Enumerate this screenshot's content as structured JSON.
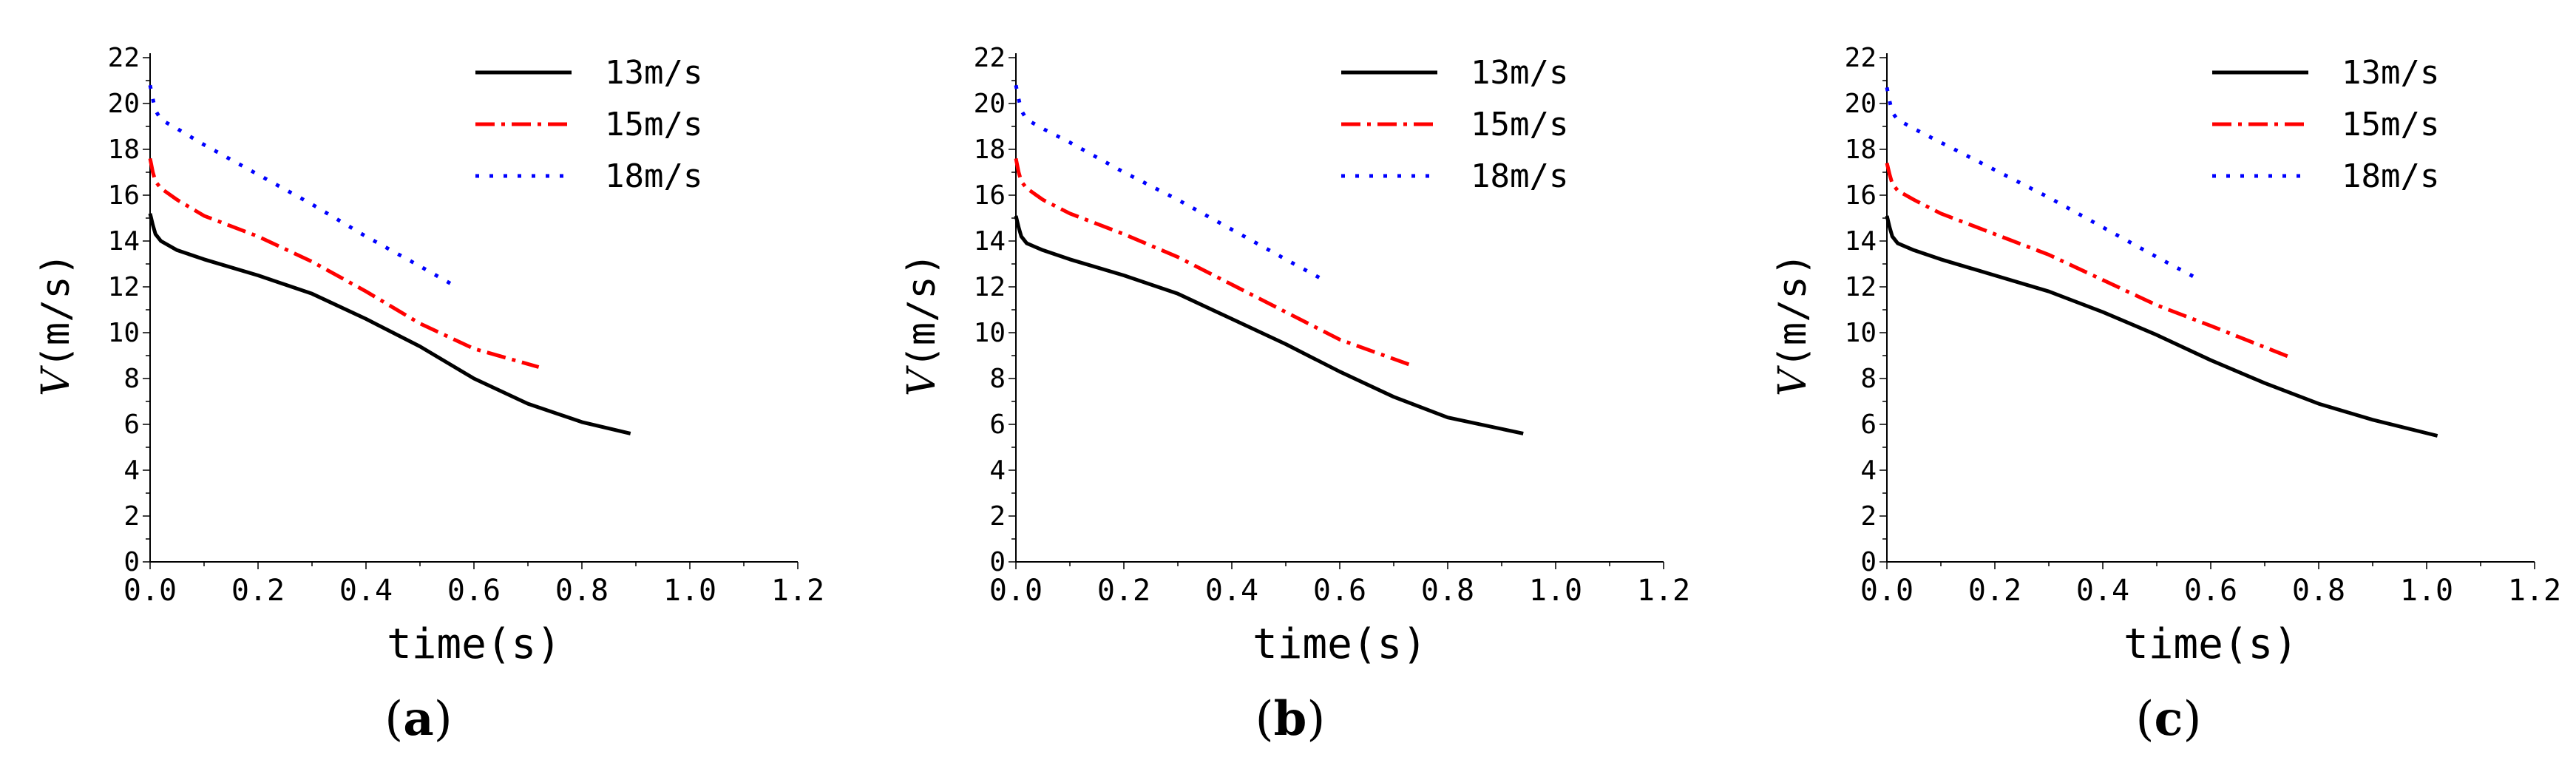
{
  "chart_data": [
    {
      "type": "line",
      "panel_label_open": "(",
      "panel_label": "a",
      "panel_label_close": ")",
      "xlabel": "time(s)",
      "ylabel_var": "V",
      "ylabel_unit": "(m/s)",
      "xlim": [
        0.0,
        1.2
      ],
      "ylim": [
        0,
        22
      ],
      "xticks": [
        0.0,
        0.2,
        0.4,
        0.6,
        0.8,
        1.0,
        1.2
      ],
      "xtick_labels": [
        "0.0",
        "0.2",
        "0.4",
        "0.6",
        "0.8",
        "1.0",
        "1.2"
      ],
      "yticks": [
        0,
        2,
        4,
        6,
        8,
        10,
        12,
        14,
        16,
        18,
        20,
        22
      ],
      "ytick_labels": [
        "0",
        "2",
        "4",
        "6",
        "8",
        "10",
        "12",
        "14",
        "16",
        "18",
        "20",
        "22"
      ],
      "legend_position": "top-right",
      "series": [
        {
          "name": "13m/s",
          "color": "#000000",
          "dash": "solid",
          "x": [
            0.0,
            0.005,
            0.01,
            0.02,
            0.05,
            0.1,
            0.2,
            0.3,
            0.4,
            0.5,
            0.6,
            0.7,
            0.8,
            0.89
          ],
          "y": [
            15.2,
            14.7,
            14.3,
            14.0,
            13.6,
            13.2,
            12.5,
            11.7,
            10.6,
            9.4,
            8.0,
            6.9,
            6.1,
            5.6
          ]
        },
        {
          "name": "15m/s",
          "color": "#ff0000",
          "dash": "dashdot",
          "x": [
            0.0,
            0.005,
            0.01,
            0.02,
            0.05,
            0.1,
            0.2,
            0.3,
            0.4,
            0.5,
            0.6,
            0.72
          ],
          "y": [
            17.6,
            17.0,
            16.6,
            16.3,
            15.8,
            15.1,
            14.2,
            13.1,
            11.8,
            10.4,
            9.3,
            8.5
          ]
        },
        {
          "name": "18m/s",
          "color": "#0000ff",
          "dash": "dotted",
          "x": [
            0.0,
            0.005,
            0.01,
            0.02,
            0.05,
            0.1,
            0.2,
            0.3,
            0.4,
            0.5,
            0.56
          ],
          "y": [
            20.8,
            20.2,
            19.7,
            19.3,
            18.9,
            18.2,
            16.9,
            15.6,
            14.2,
            12.9,
            12.1
          ]
        }
      ]
    },
    {
      "type": "line",
      "panel_label_open": "(",
      "panel_label": "b",
      "panel_label_close": ")",
      "xlabel": "time(s)",
      "ylabel_var": "V",
      "ylabel_unit": "(m/s)",
      "xlim": [
        0.0,
        1.2
      ],
      "ylim": [
        0,
        22
      ],
      "xticks": [
        0.0,
        0.2,
        0.4,
        0.6,
        0.8,
        1.0,
        1.2
      ],
      "xtick_labels": [
        "0.0",
        "0.2",
        "0.4",
        "0.6",
        "0.8",
        "1.0",
        "1.2"
      ],
      "yticks": [
        0,
        2,
        4,
        6,
        8,
        10,
        12,
        14,
        16,
        18,
        20,
        22
      ],
      "ytick_labels": [
        "0",
        "2",
        "4",
        "6",
        "8",
        "10",
        "12",
        "14",
        "16",
        "18",
        "20",
        "22"
      ],
      "legend_position": "top-right",
      "series": [
        {
          "name": "13m/s",
          "color": "#000000",
          "dash": "solid",
          "x": [
            0.0,
            0.005,
            0.01,
            0.02,
            0.05,
            0.1,
            0.2,
            0.3,
            0.4,
            0.5,
            0.6,
            0.7,
            0.8,
            0.94
          ],
          "y": [
            15.1,
            14.6,
            14.2,
            13.9,
            13.6,
            13.2,
            12.5,
            11.7,
            10.6,
            9.5,
            8.3,
            7.2,
            6.3,
            5.6
          ]
        },
        {
          "name": "15m/s",
          "color": "#ff0000",
          "dash": "dashdot",
          "x": [
            0.0,
            0.005,
            0.01,
            0.02,
            0.05,
            0.1,
            0.2,
            0.3,
            0.4,
            0.5,
            0.6,
            0.73
          ],
          "y": [
            17.6,
            17.0,
            16.6,
            16.3,
            15.8,
            15.2,
            14.3,
            13.3,
            12.1,
            10.9,
            9.7,
            8.6
          ]
        },
        {
          "name": "18m/s",
          "color": "#0000ff",
          "dash": "dotted",
          "x": [
            0.0,
            0.005,
            0.01,
            0.02,
            0.05,
            0.1,
            0.2,
            0.3,
            0.4,
            0.5,
            0.57
          ],
          "y": [
            20.8,
            20.2,
            19.7,
            19.3,
            18.9,
            18.3,
            17.0,
            15.8,
            14.5,
            13.2,
            12.3
          ]
        }
      ]
    },
    {
      "type": "line",
      "panel_label_open": "(",
      "panel_label": "c",
      "panel_label_close": ")",
      "xlabel": "time(s)",
      "ylabel_var": "V",
      "ylabel_unit": "(m/s)",
      "xlim": [
        0.0,
        1.2
      ],
      "ylim": [
        0,
        22
      ],
      "xticks": [
        0.0,
        0.2,
        0.4,
        0.6,
        0.8,
        1.0,
        1.2
      ],
      "xtick_labels": [
        "0.0",
        "0.2",
        "0.4",
        "0.6",
        "0.8",
        "1.0",
        "1.2"
      ],
      "yticks": [
        0,
        2,
        4,
        6,
        8,
        10,
        12,
        14,
        16,
        18,
        20,
        22
      ],
      "ytick_labels": [
        "0",
        "2",
        "4",
        "6",
        "8",
        "10",
        "12",
        "14",
        "16",
        "18",
        "20",
        "22"
      ],
      "legend_position": "top-right",
      "series": [
        {
          "name": "13m/s",
          "color": "#000000",
          "dash": "solid",
          "x": [
            0.0,
            0.005,
            0.01,
            0.02,
            0.05,
            0.1,
            0.2,
            0.3,
            0.4,
            0.5,
            0.6,
            0.7,
            0.8,
            0.9,
            1.02
          ],
          "y": [
            15.1,
            14.6,
            14.2,
            13.9,
            13.6,
            13.2,
            12.5,
            11.8,
            10.9,
            9.9,
            8.8,
            7.8,
            6.9,
            6.2,
            5.5
          ]
        },
        {
          "name": "15m/s",
          "color": "#ff0000",
          "dash": "dashdot",
          "x": [
            0.0,
            0.005,
            0.01,
            0.02,
            0.05,
            0.1,
            0.2,
            0.3,
            0.4,
            0.5,
            0.6,
            0.75
          ],
          "y": [
            17.4,
            16.9,
            16.5,
            16.2,
            15.8,
            15.2,
            14.3,
            13.4,
            12.3,
            11.2,
            10.3,
            8.9
          ]
        },
        {
          "name": "18m/s",
          "color": "#0000ff",
          "dash": "dotted",
          "x": [
            0.0,
            0.005,
            0.01,
            0.02,
            0.05,
            0.1,
            0.2,
            0.3,
            0.4,
            0.5,
            0.58
          ],
          "y": [
            20.7,
            20.1,
            19.6,
            19.3,
            18.9,
            18.3,
            17.1,
            15.9,
            14.6,
            13.3,
            12.3
          ]
        }
      ]
    }
  ]
}
